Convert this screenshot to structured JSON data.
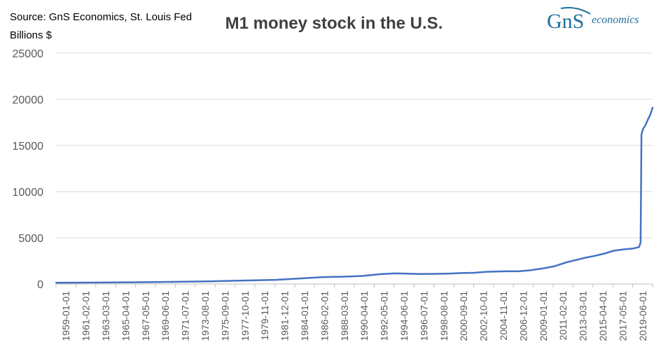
{
  "header": {
    "source": "Source: GnS Economics, St. Louis Fed",
    "units": "Billions $"
  },
  "logo": {
    "text_gns": "GnS",
    "text_economics": "economics"
  },
  "colors": {
    "line": "#4472C4",
    "grid": "#D9D9D9",
    "axis": "#BFBFBF",
    "text": "#595959",
    "logo": "#1F6E9C"
  },
  "chart_data": {
    "type": "line",
    "title": "M1 money stock in the U.S.",
    "xlabel": "",
    "ylabel": "Billions $",
    "ylim": [
      0,
      25000
    ],
    "yticks": [
      0,
      5000,
      10000,
      15000,
      20000,
      25000
    ],
    "grid": true,
    "legend": "none",
    "xticks": [
      "1959-01-01",
      "1961-02-01",
      "1963-03-01",
      "1965-04-01",
      "1967-05-01",
      "1969-06-01",
      "1971-07-01",
      "1973-08-01",
      "1975-09-01",
      "1977-10-01",
      "1979-11-01",
      "1981-12-01",
      "1984-01-01",
      "1986-02-01",
      "1988-03-01",
      "1990-04-01",
      "1992-05-01",
      "1994-06-01",
      "1996-07-01",
      "1998-08-01",
      "2000-09-01",
      "2002-10-01",
      "2004-11-01",
      "2006-12-01",
      "2009-01-01",
      "2011-02-01",
      "2013-03-01",
      "2015-04-01",
      "2017-05-01",
      "2019-06-01"
    ],
    "series": [
      {
        "x": [
          "1959-01-01",
          "1963-01-01",
          "1967-01-01",
          "1971-01-01",
          "1975-01-01",
          "1979-01-01",
          "1982-01-01",
          "1985-01-01",
          "1987-01-01",
          "1989-01-01",
          "1991-01-01",
          "1993-01-01",
          "1994-06-01",
          "1995-06-01",
          "1997-01-01",
          "1998-06-01",
          "2000-01-01",
          "2001-06-01",
          "2002-10-01",
          "2004-01-01",
          "2006-01-01",
          "2007-06-01",
          "2008-10-01",
          "2010-01-01",
          "2011-02-01",
          "2012-06-01",
          "2013-06-01",
          "2014-06-01",
          "2015-06-01",
          "2016-06-01",
          "2017-05-01",
          "2018-06-01",
          "2019-06-01",
          "2020-01-01",
          "2020-03-01",
          "2020-04-01",
          "2020-05-01",
          "2020-06-01",
          "2020-09-01",
          "2020-12-01",
          "2021-03-01",
          "2021-06-01"
        ],
        "values": [
          139,
          153,
          181,
          228,
          282,
          382,
          445,
          620,
          750,
          786,
          864,
          1070,
          1145,
          1130,
          1075,
          1093,
          1120,
          1180,
          1215,
          1320,
          1375,
          1375,
          1500,
          1700,
          1900,
          2350,
          2600,
          2850,
          3050,
          3300,
          3600,
          3750,
          3850,
          4000,
          4500,
          16200,
          16500,
          16800,
          17200,
          17800,
          18300,
          19100
        ]
      }
    ]
  }
}
